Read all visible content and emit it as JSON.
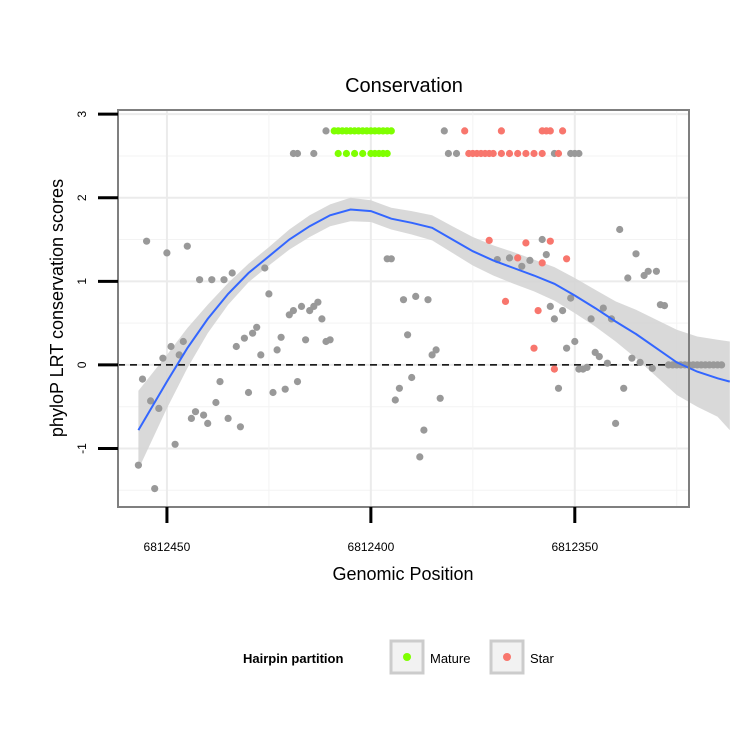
{
  "chart_data": {
    "type": "scatter",
    "title": "Conservation",
    "xlabel": "Genomic Position",
    "ylabel": "phyloP LRT conservation scores",
    "x_reversed": true,
    "xlim": [
      6812462,
      6812322
    ],
    "ylim": [
      -1.7,
      3.05
    ],
    "x_ticks": [
      6812450,
      6812400,
      6812350
    ],
    "x_tick_labels": [
      "6812450",
      "6812400",
      "6812350"
    ],
    "y_ticks": [
      -1,
      0,
      1,
      2,
      3
    ],
    "y_tick_labels": [
      "-1",
      "0",
      "1",
      "2",
      "3"
    ],
    "grid": true,
    "reference_line": {
      "y": 0,
      "style": "dashed"
    },
    "legend": {
      "title": "Hairpin partition",
      "placement": "bottom",
      "entries": [
        {
          "label": "Mature",
          "color": "#7FFF00"
        },
        {
          "label": "Star",
          "color": "#F8766D"
        }
      ]
    },
    "colors": {
      "other": "#999999",
      "Mature": "#7FFF00",
      "Star": "#F8766D",
      "smooth_line": "#3366FF",
      "confidence_band": "#D5D5D5"
    },
    "series": [
      {
        "group": "other",
        "points": [
          [
            6812457,
            -1.2
          ],
          [
            6812456,
            -0.17
          ],
          [
            6812455,
            1.48
          ],
          [
            6812454,
            -0.43
          ],
          [
            6812453,
            -1.48
          ],
          [
            6812452,
            -0.52
          ],
          [
            6812451,
            0.08
          ],
          [
            6812450,
            1.34
          ],
          [
            6812449,
            0.22
          ],
          [
            6812448,
            -0.95
          ],
          [
            6812447,
            0.12
          ],
          [
            6812446,
            0.28
          ],
          [
            6812445,
            1.42
          ],
          [
            6812444,
            -0.64
          ],
          [
            6812443,
            -0.56
          ],
          [
            6812442,
            1.02
          ],
          [
            6812441,
            -0.6
          ],
          [
            6812440,
            -0.7
          ],
          [
            6812439,
            1.02
          ],
          [
            6812438,
            -0.45
          ],
          [
            6812437,
            -0.2
          ],
          [
            6812436,
            1.02
          ],
          [
            6812435,
            -0.64
          ],
          [
            6812434,
            1.1
          ],
          [
            6812433,
            0.22
          ],
          [
            6812432,
            -0.74
          ],
          [
            6812431,
            0.32
          ],
          [
            6812430,
            -0.33
          ],
          [
            6812429,
            0.38
          ],
          [
            6812428,
            0.45
          ],
          [
            6812427,
            0.12
          ],
          [
            6812426,
            1.16
          ],
          [
            6812425,
            0.85
          ],
          [
            6812424,
            -0.33
          ],
          [
            6812423,
            0.18
          ],
          [
            6812422,
            0.33
          ],
          [
            6812421,
            -0.29
          ],
          [
            6812420,
            0.6
          ],
          [
            6812419,
            0.65
          ],
          [
            6812418,
            -0.2
          ],
          [
            6812417,
            0.7
          ],
          [
            6812416,
            0.3
          ],
          [
            6812415,
            0.65
          ],
          [
            6812414,
            0.7
          ],
          [
            6812413,
            0.75
          ],
          [
            6812412,
            0.55
          ],
          [
            6812411,
            0.28
          ],
          [
            6812410,
            0.3
          ],
          [
            6812419,
            2.53
          ],
          [
            6812418,
            2.53
          ],
          [
            6812414,
            2.53
          ],
          [
            6812411,
            2.8
          ],
          [
            6812396,
            1.27
          ],
          [
            6812395,
            1.27
          ],
          [
            6812394,
            -0.42
          ],
          [
            6812393,
            -0.28
          ],
          [
            6812392,
            0.78
          ],
          [
            6812391,
            0.36
          ],
          [
            6812390,
            -0.15
          ],
          [
            6812389,
            0.82
          ],
          [
            6812388,
            -1.1
          ],
          [
            6812387,
            -0.78
          ],
          [
            6812386,
            0.78
          ],
          [
            6812385,
            0.12
          ],
          [
            6812384,
            0.18
          ],
          [
            6812383,
            -0.4
          ],
          [
            6812382,
            2.8
          ],
          [
            6812381,
            2.53
          ],
          [
            6812379,
            2.53
          ],
          [
            6812355,
            2.53
          ],
          [
            6812351,
            2.53
          ],
          [
            6812350,
            2.53
          ],
          [
            6812349,
            2.53
          ],
          [
            6812369,
            1.26
          ],
          [
            6812366,
            1.28
          ],
          [
            6812363,
            1.18
          ],
          [
            6812361,
            1.25
          ],
          [
            6812358,
            1.5
          ],
          [
            6812357,
            1.32
          ],
          [
            6812356,
            0.7
          ],
          [
            6812355,
            0.55
          ],
          [
            6812354,
            -0.28
          ],
          [
            6812353,
            0.65
          ],
          [
            6812352,
            0.2
          ],
          [
            6812351,
            0.8
          ],
          [
            6812350,
            0.28
          ],
          [
            6812349,
            -0.05
          ],
          [
            6812348,
            -0.05
          ],
          [
            6812347,
            -0.03
          ],
          [
            6812346,
            0.55
          ],
          [
            6812345,
            0.15
          ],
          [
            6812344,
            0.1
          ],
          [
            6812343,
            0.68
          ],
          [
            6812342,
            0.02
          ],
          [
            6812341,
            0.55
          ],
          [
            6812340,
            -0.7
          ],
          [
            6812339,
            1.62
          ],
          [
            6812338,
            -0.28
          ],
          [
            6812337,
            1.04
          ],
          [
            6812336,
            0.08
          ],
          [
            6812335,
            1.33
          ],
          [
            6812334,
            0.03
          ],
          [
            6812333,
            1.07
          ],
          [
            6812332,
            1.12
          ],
          [
            6812331,
            -0.04
          ],
          [
            6812330,
            1.12
          ],
          [
            6812329,
            0.72
          ],
          [
            6812328,
            0.71
          ],
          [
            6812327,
            0.0
          ],
          [
            6812326,
            0.0
          ],
          [
            6812325,
            0.0
          ],
          [
            6812324,
            0.0
          ],
          [
            6812323,
            0.0
          ],
          [
            6812322,
            0.0
          ],
          [
            6812321,
            0.0
          ],
          [
            6812320,
            0.0
          ],
          [
            6812319,
            0.0
          ],
          [
            6812318,
            0.0
          ],
          [
            6812317,
            0.0
          ],
          [
            6812316,
            0.0
          ],
          [
            6812315,
            0.0
          ],
          [
            6812314,
            0.0
          ]
        ]
      },
      {
        "group": "Mature",
        "points": [
          [
            6812409,
            2.8
          ],
          [
            6812408,
            2.8
          ],
          [
            6812407,
            2.8
          ],
          [
            6812406,
            2.8
          ],
          [
            6812405,
            2.8
          ],
          [
            6812404,
            2.8
          ],
          [
            6812403,
            2.8
          ],
          [
            6812402,
            2.8
          ],
          [
            6812401,
            2.8
          ],
          [
            6812400,
            2.8
          ],
          [
            6812399,
            2.8
          ],
          [
            6812398,
            2.8
          ],
          [
            6812397,
            2.8
          ],
          [
            6812396,
            2.8
          ],
          [
            6812395,
            2.8
          ],
          [
            6812408,
            2.53
          ],
          [
            6812406,
            2.53
          ],
          [
            6812404,
            2.53
          ],
          [
            6812402,
            2.53
          ],
          [
            6812400,
            2.53
          ],
          [
            6812399,
            2.53
          ],
          [
            6812398,
            2.53
          ],
          [
            6812397,
            2.53
          ],
          [
            6812396,
            2.53
          ]
        ]
      },
      {
        "group": "Star",
        "points": [
          [
            6812376,
            2.53
          ],
          [
            6812375,
            2.53
          ],
          [
            6812374,
            2.53
          ],
          [
            6812373,
            2.53
          ],
          [
            6812372,
            2.53
          ],
          [
            6812371,
            2.53
          ],
          [
            6812370,
            2.53
          ],
          [
            6812368,
            2.53
          ],
          [
            6812366,
            2.53
          ],
          [
            6812364,
            2.53
          ],
          [
            6812362,
            2.53
          ],
          [
            6812360,
            2.53
          ],
          [
            6812358,
            2.53
          ],
          [
            6812354,
            2.53
          ],
          [
            6812377,
            2.8
          ],
          [
            6812368,
            2.8
          ],
          [
            6812358,
            2.8
          ],
          [
            6812357,
            2.8
          ],
          [
            6812356,
            2.8
          ],
          [
            6812353,
            2.8
          ],
          [
            6812371,
            1.49
          ],
          [
            6812367,
            0.76
          ],
          [
            6812364,
            1.28
          ],
          [
            6812362,
            1.46
          ],
          [
            6812360,
            0.2
          ],
          [
            6812359,
            0.65
          ],
          [
            6812358,
            1.22
          ],
          [
            6812356,
            1.48
          ],
          [
            6812355,
            -0.05
          ],
          [
            6812352,
            1.27
          ]
        ]
      }
    ],
    "smooth": {
      "x": [
        6812457,
        6812450,
        6812445,
        6812440,
        6812435,
        6812430,
        6812425,
        6812420,
        6812415,
        6812410,
        6812405,
        6812400,
        6812395,
        6812390,
        6812385,
        6812380,
        6812375,
        6812370,
        6812365,
        6812360,
        6812355,
        6812350,
        6812345,
        6812340,
        6812335,
        6812330,
        6812325,
        6812320,
        6812315,
        6812312
      ],
      "y": [
        -0.78,
        -0.2,
        0.2,
        0.55,
        0.85,
        1.1,
        1.3,
        1.5,
        1.66,
        1.79,
        1.86,
        1.84,
        1.75,
        1.7,
        1.64,
        1.5,
        1.36,
        1.25,
        1.16,
        1.07,
        0.97,
        0.83,
        0.68,
        0.52,
        0.37,
        0.2,
        0.03,
        -0.08,
        -0.16,
        -0.2
      ],
      "lower": [
        -1.25,
        -0.52,
        -0.04,
        0.38,
        0.72,
        0.99,
        1.19,
        1.38,
        1.53,
        1.66,
        1.72,
        1.71,
        1.62,
        1.56,
        1.49,
        1.34,
        1.19,
        1.07,
        0.97,
        0.88,
        0.77,
        0.62,
        0.46,
        0.28,
        0.08,
        -0.14,
        -0.36,
        -0.5,
        -0.62,
        -0.78
      ],
      "upper": [
        -0.31,
        0.12,
        0.44,
        0.72,
        0.98,
        1.21,
        1.41,
        1.62,
        1.79,
        1.92,
        2.0,
        1.97,
        1.88,
        1.84,
        1.79,
        1.66,
        1.53,
        1.43,
        1.35,
        1.26,
        1.17,
        1.04,
        0.9,
        0.76,
        0.66,
        0.54,
        0.42,
        0.34,
        0.3,
        0.28
      ]
    }
  }
}
